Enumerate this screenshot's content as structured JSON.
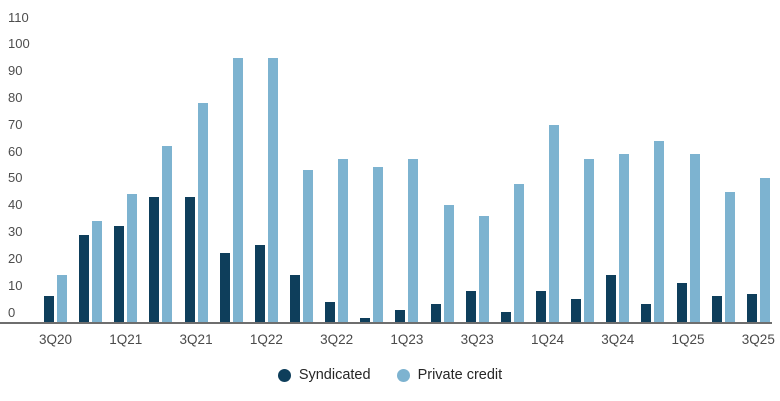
{
  "chart_data": {
    "type": "bar",
    "title": "",
    "categories": [
      "3Q20",
      "4Q20",
      "1Q21",
      "2Q21",
      "3Q21",
      "4Q21",
      "1Q22",
      "2Q22",
      "3Q22",
      "4Q22",
      "1Q23",
      "2Q23",
      "3Q23",
      "4Q23",
      "1Q24",
      "2Q24",
      "3Q24",
      "4Q24",
      "1Q25",
      "2Q25",
      "3Q25"
    ],
    "x_ticks_shown": [
      "3Q20",
      "1Q21",
      "3Q21",
      "1Q22",
      "3Q22",
      "1Q23",
      "3Q23",
      "1Q24",
      "3Q24",
      "1Q25",
      "3Q25"
    ],
    "series": [
      {
        "name": "Syndicated",
        "color": "#0e3e5b",
        "values": [
          10,
          33,
          36,
          47,
          47,
          26,
          29,
          18,
          8,
          2,
          5,
          7,
          12,
          4,
          12,
          9,
          18,
          7,
          15,
          10,
          11
        ]
      },
      {
        "name": "Private credit",
        "color": "#7db3d0",
        "values": [
          18,
          38,
          48,
          66,
          82,
          99,
          99,
          57,
          61,
          58,
          61,
          44,
          40,
          52,
          74,
          61,
          63,
          68,
          63,
          49,
          54
        ]
      }
    ],
    "ylim": [
      0,
      110
    ],
    "y_tick_step": 10,
    "y_tick_labels": [
      "0",
      "10",
      "20",
      "30",
      "40",
      "50",
      "60",
      "70",
      "80",
      "90",
      "100",
      "110"
    ],
    "grid": "none",
    "legend_position": "bottom-center",
    "background": "#ffffff"
  },
  "legend": {
    "items": [
      {
        "label": "Syndicated",
        "color": "#0e3e5b"
      },
      {
        "label": "Private credit",
        "color": "#7db3d0"
      }
    ]
  },
  "colors": {
    "axis_line": "#6e6e6e",
    "y_tick_text": "#4d4d4d",
    "x_tick_text": "#4a4a4a",
    "legend_text": "#262626",
    "background": "#ffffff"
  }
}
